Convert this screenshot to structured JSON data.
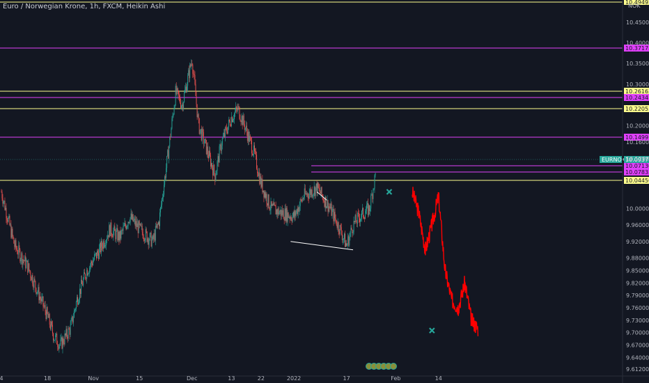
{
  "header": {
    "title": "Euro / Norwegian Krone, 1h, FXCM, Heikin Ashi"
  },
  "chart_data": {
    "type": "candlestick",
    "symbol": "EURNOK",
    "currency": "NOK",
    "ylim": [
      9.595,
      10.495
    ],
    "y_ticks": [
      "10.45000",
      "10.40000",
      "10.35000",
      "10.30000",
      "10.20000",
      "10.16000",
      "10.12000",
      "10.00000",
      "9.96000",
      "9.92000",
      "9.88000",
      "9.85000",
      "9.82000",
      "9.79000",
      "9.76000",
      "9.73000",
      "9.70000",
      "9.67000",
      "9.64000",
      "9.61200"
    ],
    "x_ticks": [
      "4",
      "18",
      "Nov",
      "15",
      "Dec",
      "13",
      "22",
      "2022",
      "17",
      "Feb",
      "14"
    ],
    "top_tag": "10.49492",
    "current_price": {
      "label": "EURNOK",
      "value": "10.09377",
      "color": "#26a69a"
    },
    "levels": [
      {
        "value": "10.37175",
        "color": "#e040fb"
      },
      {
        "value": "10.26163",
        "color": "#ffff8d"
      },
      {
        "value": "10.24341",
        "color": "#e040fb"
      },
      {
        "value": "10.22055",
        "color": "#ffff8d"
      },
      {
        "value": "10.14991",
        "color": "#e040fb"
      },
      {
        "value": "10.07130",
        "color": "#e040fb"
      },
      {
        "value": "10.07835",
        "color": "#e040fb"
      },
      {
        "value": "10.04450",
        "color": "#ffff8d"
      }
    ],
    "price_path": [
      [
        "Oct 4",
        10.04
      ],
      [
        "Oct 8",
        9.91
      ],
      [
        "Oct 12",
        9.86
      ],
      [
        "Oct 15",
        9.8
      ],
      [
        "Oct 18",
        9.74
      ],
      [
        "Oct 20",
        9.69
      ],
      [
        "Oct 22",
        9.67
      ],
      [
        "Oct 25",
        9.71
      ],
      [
        "Oct 27",
        9.78
      ],
      [
        "Oct 30",
        9.85
      ],
      [
        "Nov 3",
        9.9
      ],
      [
        "Nov 6",
        9.95
      ],
      [
        "Nov 9",
        9.93
      ],
      [
        "Nov 12",
        9.98
      ],
      [
        "Nov 15",
        9.95
      ],
      [
        "Nov 19",
        9.92
      ],
      [
        "Nov 21",
        9.97
      ],
      [
        "Nov 24",
        10.15
      ],
      [
        "Nov 26",
        10.28
      ],
      [
        "Nov 28",
        10.25
      ],
      [
        "Dec 1",
        10.36
      ],
      [
        "Dec 3",
        10.2
      ],
      [
        "Dec 6",
        10.13
      ],
      [
        "Dec 8",
        10.08
      ],
      [
        "Dec 10",
        10.16
      ],
      [
        "Dec 13",
        10.22
      ],
      [
        "Dec 15",
        10.24
      ],
      [
        "Dec 17",
        10.2
      ],
      [
        "Dec 20",
        10.13
      ],
      [
        "Dec 22",
        10.06
      ],
      [
        "Dec 25",
        10.0
      ],
      [
        "Dec 28",
        9.99
      ],
      [
        "Jan 1",
        9.98
      ],
      [
        "Jan 4",
        10.03
      ],
      [
        "Jan 8",
        10.05
      ],
      [
        "Jan 12",
        10.0
      ],
      [
        "Jan 15",
        9.95
      ],
      [
        "Jan 17",
        9.91
      ],
      [
        "Jan 19",
        9.96
      ],
      [
        "Jan 21",
        9.98
      ],
      [
        "Jan 24",
        10.0
      ],
      [
        "Jan 26",
        10.09
      ]
    ],
    "projection": {
      "color": "#ff0000",
      "points": [
        [
          "Feb 6",
          10.04
        ],
        [
          "Feb 8",
          9.99
        ],
        [
          "Feb 10",
          9.9
        ],
        [
          "Feb 12",
          9.96
        ],
        [
          "Feb 14",
          10.03
        ],
        [
          "Feb 16",
          9.85
        ],
        [
          "Feb 18",
          9.78
        ],
        [
          "Feb 20",
          9.76
        ],
        [
          "Feb 22",
          9.82
        ],
        [
          "Feb 24",
          9.73
        ],
        [
          "Feb 26",
          9.71
        ]
      ]
    },
    "markers": [
      {
        "type": "x",
        "date": "Jan 30",
        "price": 10.04,
        "color": "#26a69a"
      },
      {
        "type": "x",
        "date": "Feb 12",
        "price": 9.705,
        "color": "#26a69a"
      }
    ],
    "trendlines": [
      {
        "color": "#ffffff",
        "from": [
          "Dec 31",
          9.92
        ],
        "to": [
          "Jan 19",
          9.9
        ]
      },
      {
        "color": "#ffffff",
        "from": [
          "Jan 8",
          10.04
        ],
        "to": [
          "Jan 11",
          10.02
        ]
      }
    ],
    "grid": false
  }
}
